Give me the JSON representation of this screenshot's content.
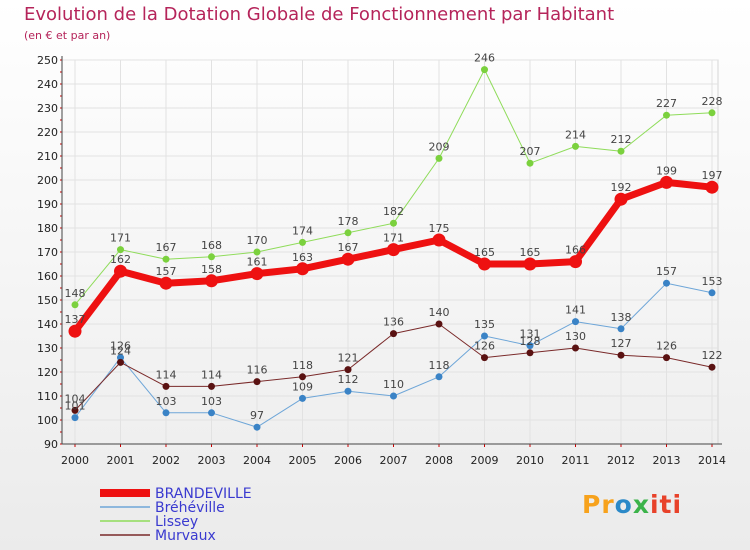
{
  "header": {
    "title": "Evolution de la Dotation Globale de Fonctionnement par Habitant",
    "subtitle": "(en € et par an)"
  },
  "logo": {
    "p1": "Pr",
    "p2": "o",
    "p3": "x",
    "p4": "iti"
  },
  "colors": {
    "title": "#b5245a",
    "BRANDEVILLE": "#ee1111",
    "Bréhéville": "#5d9bd3",
    "Lissey": "#8fdc5a",
    "Murvaux": "#7a2a2a"
  },
  "chart_data": {
    "type": "line",
    "title": "Evolution de la Dotation Globale de Fonctionnement par Habitant",
    "subtitle": "(en € et par an)",
    "xlabel": "",
    "ylabel": "",
    "ylim": [
      90,
      250
    ],
    "yticks": [
      90,
      100,
      110,
      120,
      130,
      140,
      150,
      160,
      170,
      180,
      190,
      200,
      210,
      220,
      230,
      240,
      250
    ],
    "grid": true,
    "legend_position": "bottom-left",
    "x": [
      "2000",
      "2001",
      "2002",
      "2003",
      "2004",
      "2005",
      "2006",
      "2007",
      "2008",
      "2009",
      "2010",
      "2011",
      "2012",
      "2013",
      "2014"
    ],
    "series": [
      {
        "name": "BRANDEVILLE",
        "values": [
          137,
          162,
          157,
          158,
          161,
          163,
          167,
          171,
          175,
          165,
          165,
          166,
          192,
          199,
          197
        ]
      },
      {
        "name": "Bréhéville",
        "values": [
          101,
          126,
          103,
          103,
          97,
          109,
          112,
          110,
          118,
          135,
          131,
          141,
          138,
          157,
          153
        ]
      },
      {
        "name": "Lissey",
        "values": [
          148,
          171,
          167,
          168,
          170,
          174,
          178,
          182,
          209,
          246,
          207,
          214,
          212,
          227,
          228
        ]
      },
      {
        "name": "Murvaux",
        "values": [
          104,
          124,
          114,
          114,
          116,
          118,
          121,
          136,
          140,
          126,
          128,
          130,
          127,
          126,
          122
        ]
      }
    ]
  }
}
